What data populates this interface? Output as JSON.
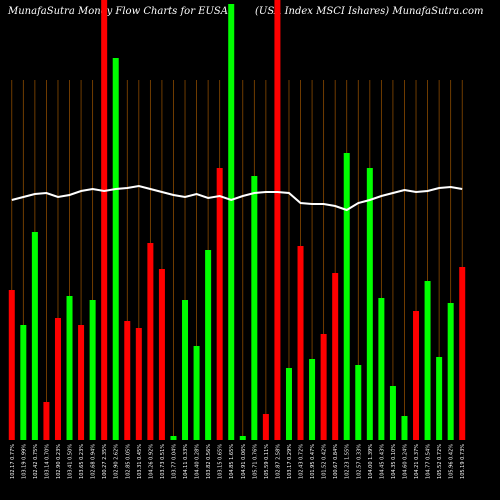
{
  "chart_data": {
    "type": "bar",
    "title": "MunafaSutra  Money Flow  Charts for EUSA",
    "subtitle": "(USA  Index MSCI Ishares) MunafaSutra.com",
    "categories": [
      "102.17 0.77%",
      "103.19 0.99%",
      "102.42 0.75%",
      "103.14 0.70%",
      "102.90 0.23%",
      "103.41 0.50%",
      "103.65 0.23%",
      "102.68 0.94%",
      "100.27 2.35%",
      "102.90 2.62%",
      "102.85 0.05%",
      "103.31 0.45%",
      "104.26 0.92%",
      "103.73 0.51%",
      "103.77 0.04%",
      "104.11 0.33%",
      "104.40 0.28%",
      "103.82 0.56%",
      "103.15 0.65%",
      "104.85 1.65%",
      "104.91 0.06%",
      "105.71 0.76%",
      "105.59 0.11%",
      "102.87 2.58%",
      "103.17 0.29%",
      "102.43 0.72%",
      "101.95 0.47%",
      "101.52 0.42%",
      "100.67 0.84%",
      "102.23 1.55%",
      "102.57 0.33%",
      "104.00 1.39%",
      "104.45 0.43%",
      "104.35 0.10%",
      "104.60 0.24%",
      "104.21 0.37%",
      "104.77 0.54%",
      "105.52 0.72%",
      "105.96 0.42%",
      "105.19 0.73%"
    ],
    "values": [
      150,
      115,
      208,
      38,
      122,
      144,
      115,
      140,
      440,
      382,
      119,
      112,
      197,
      171,
      4,
      140,
      94,
      190,
      272,
      436,
      4,
      264,
      26,
      440,
      72,
      194,
      81,
      106,
      167,
      287,
      75,
      272,
      142,
      54,
      24,
      129,
      159,
      83,
      137,
      173
    ],
    "colors": [
      "#ff0000",
      "#00ff00",
      "#00ff00",
      "#ff0000",
      "#ff0000",
      "#00ff00",
      "#ff0000",
      "#00ff00",
      "#ff0000",
      "#00ff00",
      "#ff0000",
      "#ff0000",
      "#ff0000",
      "#ff0000",
      "#00ff00",
      "#00ff00",
      "#00ff00",
      "#00ff00",
      "#ff0000",
      "#00ff00",
      "#00ff00",
      "#00ff00",
      "#ff0000",
      "#ff0000",
      "#00ff00",
      "#ff0000",
      "#00ff00",
      "#ff0000",
      "#ff0000",
      "#00ff00",
      "#00ff00",
      "#00ff00",
      "#00ff00",
      "#00ff00",
      "#00ff00",
      "#ff0000",
      "#00ff00",
      "#00ff00",
      "#00ff00",
      "#ff0000"
    ],
    "line": {
      "color": "#ffffff",
      "values": [
        240,
        243,
        246,
        247,
        243,
        245,
        249,
        251,
        249,
        251,
        252,
        254,
        251,
        248,
        245,
        243,
        246,
        242,
        244,
        240,
        244,
        247,
        248,
        248,
        247,
        237,
        236,
        236,
        234,
        230,
        237,
        240,
        244,
        247,
        250,
        248,
        249,
        252,
        253,
        251
      ]
    },
    "ylim": [
      0,
      440
    ]
  }
}
